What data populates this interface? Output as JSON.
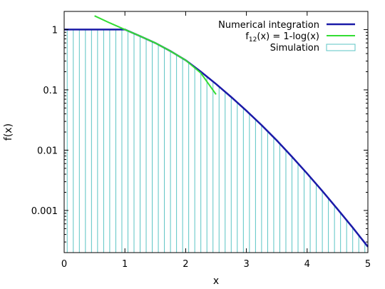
{
  "chart_data": {
    "type": "line",
    "xlabel": "x",
    "ylabel": "f(x)",
    "xlim": [
      0,
      5
    ],
    "ylim": [
      0.0002,
      2
    ],
    "yscale": "log",
    "grid": false,
    "legend_position": "top-right",
    "x_ticks": [
      "0",
      "1",
      "2",
      "3",
      "4",
      "5"
    ],
    "y_ticks": [
      {
        "value": 1,
        "label": "1"
      },
      {
        "value": 0.1,
        "label": "0.1"
      },
      {
        "value": 0.01,
        "label": "0.01"
      },
      {
        "value": 0.001,
        "label": "0.001"
      }
    ],
    "series": [
      {
        "name": "Numerical integration",
        "kind": "line",
        "color": "#1a1aa8",
        "x": [
          0,
          1,
          1.25,
          1.5,
          1.75,
          2,
          2.25,
          2.5,
          2.75,
          3,
          3.25,
          3.5,
          3.75,
          4,
          4.25,
          4.5,
          4.75,
          5
        ],
        "y": [
          1,
          1,
          0.78,
          0.6,
          0.44,
          0.31,
          0.2,
          0.125,
          0.076,
          0.045,
          0.026,
          0.0145,
          0.0078,
          0.0041,
          0.0021,
          0.00105,
          0.00052,
          0.00025
        ]
      },
      {
        "name": "f12(x) = 1-log(x)",
        "legend_main": "f",
        "legend_sub": "12",
        "legend_rest": "(x) = 1-log(x)",
        "kind": "line",
        "color": "#33dd33",
        "x": [
          0.5,
          0.75,
          1,
          1.25,
          1.5,
          1.75,
          2,
          2.25,
          2.5
        ],
        "y": [
          1.69,
          1.29,
          1,
          0.78,
          0.6,
          0.44,
          0.31,
          0.19,
          0.084
        ]
      },
      {
        "name": "Simulation",
        "kind": "histogram",
        "color": "#5bc4c4",
        "bin_width": 0.1,
        "x_start": 0.05,
        "x_end": 4.95
      }
    ]
  }
}
